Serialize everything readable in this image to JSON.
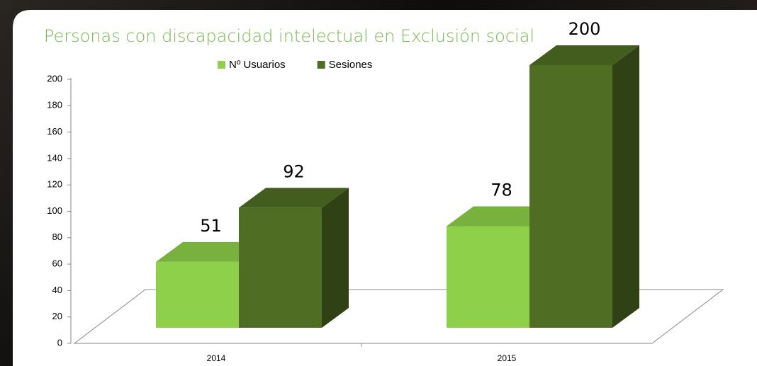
{
  "chart_data": {
    "type": "bar3d",
    "title": "Personas con discapacidad intelectual en Exclusión social",
    "categories": [
      "2014",
      "2015"
    ],
    "series": [
      {
        "name": "Nº Usuarios",
        "color": "#8ed04a",
        "values": [
          51,
          78
        ]
      },
      {
        "name": "Sesiones",
        "color": "#4f6d23",
        "values": [
          92,
          200
        ]
      }
    ],
    "ylim": [
      0,
      200
    ],
    "yticks": [
      0,
      20,
      40,
      60,
      80,
      100,
      120,
      140,
      160,
      180,
      200
    ],
    "grid": false,
    "legend": "top"
  }
}
